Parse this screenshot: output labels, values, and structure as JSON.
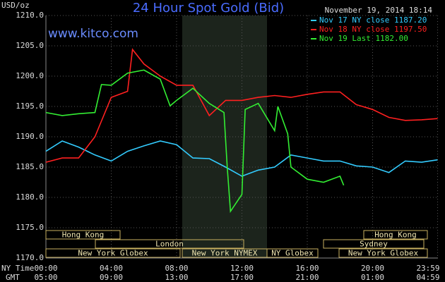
{
  "chart_data": {
    "type": "line",
    "title": "24 Hour Spot Gold (Bid)",
    "timestamp": "November 19, 2014 18:14",
    "watermark": "www.kitco.com",
    "y_label": "USD/oz",
    "x_label": "NY Time",
    "x2_label": "GMT",
    "xlim": [
      0,
      24
    ],
    "ylim": [
      1170,
      1210
    ],
    "grid": true,
    "xticks": [
      {
        "value": 0,
        "label": "00:00"
      },
      {
        "value": 4,
        "label": "04:00"
      },
      {
        "value": 8,
        "label": "08:00"
      },
      {
        "value": 12,
        "label": "12:00"
      },
      {
        "value": 16,
        "label": "16:00"
      },
      {
        "value": 20,
        "label": "20:00"
      },
      {
        "value": 23.98,
        "label": "23:59"
      }
    ],
    "gmt_tick_labels": [
      "05:00",
      "09:00",
      "13:00",
      "17:00",
      "21:00",
      "01:00",
      "04:59"
    ],
    "yticks": [
      {
        "value": 1170,
        "label": "1170.0"
      },
      {
        "value": 1175,
        "label": "1175.0"
      },
      {
        "value": 1180,
        "label": "1180.0"
      },
      {
        "value": 1185,
        "label": "1185.0"
      },
      {
        "value": 1190,
        "label": "1190.0"
      },
      {
        "value": 1195,
        "label": "1195.0"
      },
      {
        "value": 1200,
        "label": "1200.0"
      },
      {
        "value": 1205,
        "label": "1205.0"
      },
      {
        "value": 1210,
        "label": "1210.0"
      }
    ],
    "sessions": [
      "Hong Kong",
      "London",
      "New York Globex",
      "New York NYMEX",
      "NY Globex",
      "Sydney",
      "Hong Kong",
      "New York Globex"
    ],
    "series": [
      {
        "name": "Nov 17 NY close 1187.20",
        "color": "#33ccff",
        "x": [
          0,
          1,
          2,
          3,
          4,
          5,
          6,
          7,
          8,
          9,
          10,
          11,
          12,
          13,
          14,
          15,
          16,
          17,
          18,
          19,
          20,
          21,
          22,
          23,
          23.98
        ],
        "values": [
          1187.6,
          1189.3,
          1188.3,
          1187,
          1186,
          1187.6,
          1188.5,
          1189.3,
          1188.7,
          1186.5,
          1186.4,
          1185,
          1183.5,
          1184.5,
          1185,
          1187,
          1186.5,
          1186,
          1186,
          1185.2,
          1185,
          1184.1,
          1186,
          1185.8,
          1186.2
        ]
      },
      {
        "name": "Nov 18 NY close 1197.50",
        "color": "#ff2020",
        "x": [
          0,
          1,
          2,
          3,
          4,
          5,
          5.3,
          6,
          7,
          8,
          9,
          10,
          11,
          12,
          13,
          14,
          15,
          16,
          17,
          18,
          19,
          20,
          21,
          22,
          23,
          23.98
        ],
        "values": [
          1185.8,
          1186.5,
          1186.5,
          1190,
          1196.5,
          1197.5,
          1204.4,
          1202,
          1200,
          1198.5,
          1198.5,
          1193.5,
          1196,
          1196,
          1196.5,
          1196.8,
          1196.5,
          1197,
          1197.4,
          1197.4,
          1195.3,
          1194.5,
          1193.2,
          1192.7,
          1192.8,
          1193
        ]
      },
      {
        "name": "Nov 19 Last 1182.00",
        "color": "#33ee33",
        "x": [
          0,
          1,
          2,
          3,
          3.4,
          4,
          5,
          6,
          7,
          7.6,
          8,
          9,
          10,
          10.9,
          11.1,
          11.3,
          12,
          12.2,
          13,
          14,
          14.2,
          14.8,
          15,
          16,
          17,
          18,
          18.23
        ],
        "values": [
          1194,
          1193.5,
          1193.8,
          1194,
          1198.6,
          1198.5,
          1200.5,
          1201,
          1199.5,
          1195.1,
          1196,
          1198,
          1195.5,
          1194,
          1185,
          1177.7,
          1180.5,
          1194.5,
          1195.5,
          1191,
          1195,
          1190.5,
          1185,
          1183,
          1182.5,
          1183.5,
          1182
        ]
      }
    ]
  }
}
